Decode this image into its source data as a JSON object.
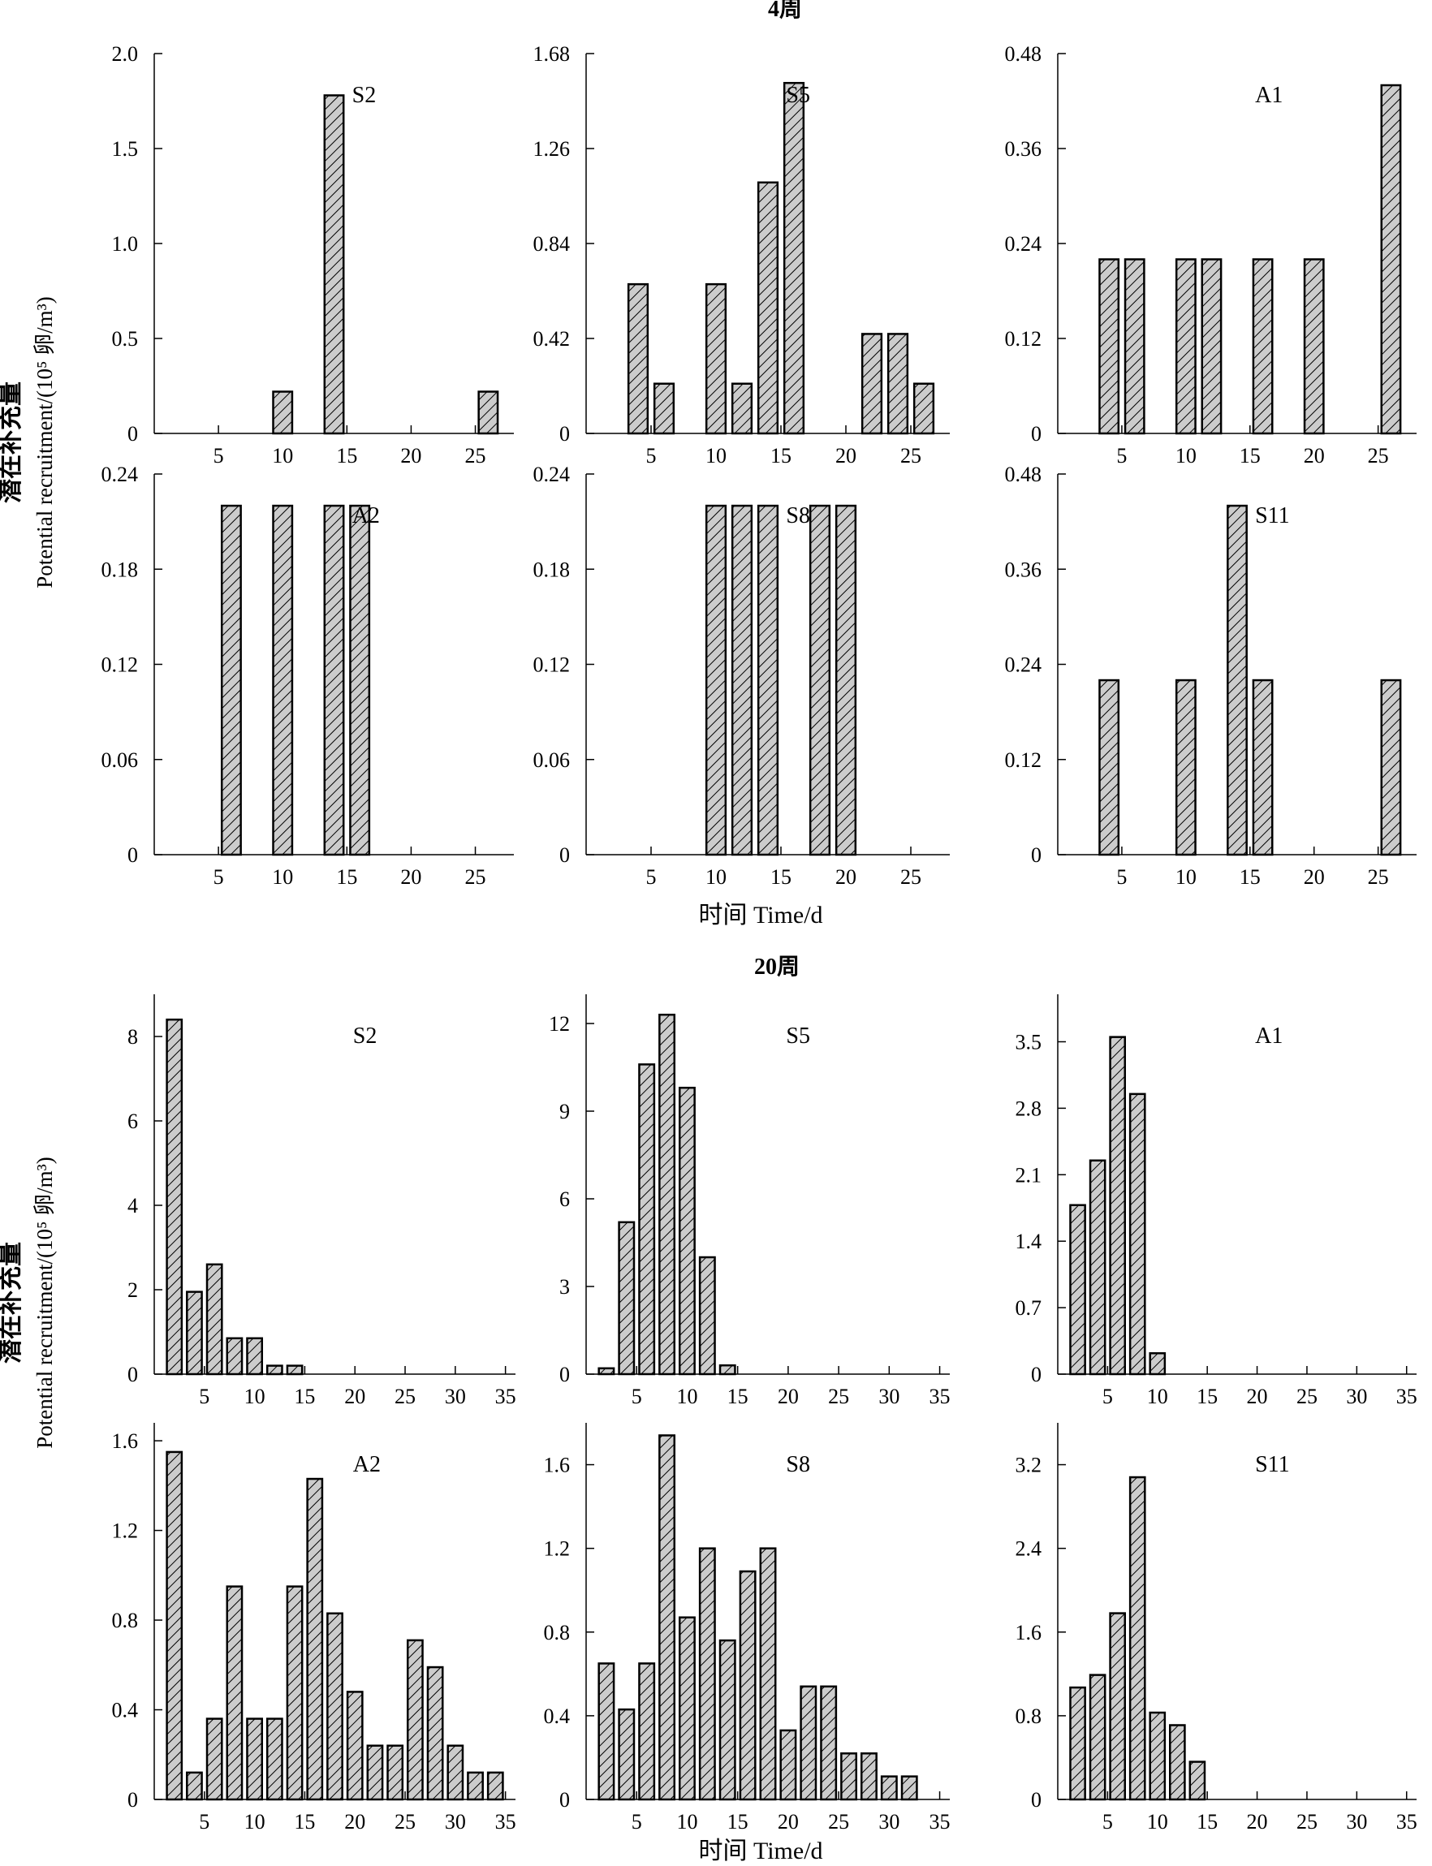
{
  "sections": [
    {
      "title": "4周",
      "xlabel": "时间 Time/d",
      "ylabel_zh": "潜在补充量",
      "ylabel_en": "Potential recruitment/(10⁵ 卵/m³)",
      "panels": [
        {
          "label": "S2",
          "ylim": [
            0,
            2.0
          ],
          "yticks": [
            "0",
            "0.5",
            "1.0",
            "1.5",
            "2.0"
          ],
          "xticks": [
            "5",
            "10",
            "15",
            "20",
            "25"
          ],
          "x": [
            10,
            14,
            26
          ],
          "values": [
            0.22,
            1.78,
            0.22
          ]
        },
        {
          "label": "S5",
          "ylim": [
            0,
            1.68
          ],
          "yticks": [
            "0",
            "0.42",
            "0.84",
            "1.26",
            "1.68"
          ],
          "xticks": [
            "5",
            "10",
            "15",
            "20",
            "25"
          ],
          "x": [
            4,
            6,
            10,
            12,
            14,
            16,
            22,
            24,
            26
          ],
          "values": [
            0.66,
            0.22,
            0.66,
            0.22,
            1.11,
            1.55,
            0.44,
            0.44,
            0.22
          ]
        },
        {
          "label": "A1",
          "ylim": [
            0,
            0.48
          ],
          "yticks": [
            "0",
            "0.12",
            "0.24",
            "0.36",
            "0.48"
          ],
          "xticks": [
            "5",
            "10",
            "15",
            "20",
            "25"
          ],
          "x": [
            4,
            6,
            10,
            12,
            16,
            20,
            26
          ],
          "values": [
            0.22,
            0.22,
            0.22,
            0.22,
            0.22,
            0.22,
            0.44
          ]
        },
        {
          "label": "A2",
          "ylim": [
            0,
            0.24
          ],
          "yticks": [
            "0",
            "0.06",
            "0.12",
            "0.18",
            "0.24"
          ],
          "xticks": [
            "5",
            "10",
            "15",
            "20",
            "25"
          ],
          "x": [
            6,
            10,
            14,
            16
          ],
          "values": [
            0.22,
            0.22,
            0.22,
            0.22
          ]
        },
        {
          "label": "S8",
          "ylim": [
            0,
            0.24
          ],
          "yticks": [
            "0",
            "0.06",
            "0.12",
            "0.18",
            "0.24"
          ],
          "xticks": [
            "5",
            "10",
            "15",
            "20",
            "25"
          ],
          "x": [
            10,
            12,
            14,
            18,
            20
          ],
          "values": [
            0.22,
            0.22,
            0.22,
            0.22,
            0.22
          ]
        },
        {
          "label": "S11",
          "ylim": [
            0,
            0.48
          ],
          "yticks": [
            "0",
            "0.12",
            "0.24",
            "0.36",
            "0.48"
          ],
          "xticks": [
            "5",
            "10",
            "15",
            "20",
            "25"
          ],
          "x": [
            4,
            10,
            14,
            16,
            26
          ],
          "values": [
            0.22,
            0.22,
            0.44,
            0.22,
            0.22
          ]
        }
      ]
    },
    {
      "title": "20周",
      "xlabel": "时间 Time/d",
      "ylabel_zh": "潜在补充量",
      "ylabel_en": "Potential recruitment/(10⁵ 卵/m³)",
      "panels": [
        {
          "label": "S2",
          "ylim": [
            0,
            9
          ],
          "yticks": [
            "0",
            "2",
            "4",
            "6",
            "8"
          ],
          "xticks": [
            "5",
            "10",
            "15",
            "20",
            "25",
            "30",
            "35"
          ],
          "x": [
            2,
            4,
            6,
            8,
            10,
            12,
            14
          ],
          "values": [
            8.4,
            1.95,
            2.6,
            0.85,
            0.85,
            0.2,
            0.2
          ]
        },
        {
          "label": "S5",
          "ylim": [
            0,
            13
          ],
          "yticks": [
            "0",
            "3",
            "6",
            "9",
            "12"
          ],
          "xticks": [
            "5",
            "10",
            "15",
            "20",
            "25",
            "30",
            "35"
          ],
          "x": [
            2,
            4,
            6,
            8,
            10,
            12,
            14
          ],
          "values": [
            0.2,
            5.2,
            10.6,
            12.3,
            9.8,
            4.0,
            0.3
          ]
        },
        {
          "label": "A1",
          "ylim": [
            0,
            4.0
          ],
          "yticks": [
            "0",
            "0.7",
            "1.4",
            "2.1",
            "2.8",
            "3.5"
          ],
          "xticks": [
            "5",
            "10",
            "15",
            "20",
            "25",
            "30",
            "35"
          ],
          "x": [
            2,
            4,
            6,
            8,
            10
          ],
          "values": [
            1.78,
            2.25,
            3.55,
            2.95,
            0.22
          ]
        },
        {
          "label": "A2",
          "ylim": [
            0,
            1.68
          ],
          "yticks": [
            "0",
            "0.4",
            "0.8",
            "1.2",
            "1.6"
          ],
          "xticks": [
            "5",
            "10",
            "15",
            "20",
            "25",
            "30",
            "35"
          ],
          "x": [
            2,
            4,
            6,
            8,
            10,
            12,
            14,
            16,
            18,
            20,
            22,
            24,
            26,
            28,
            30,
            32,
            34
          ],
          "values": [
            1.55,
            0.12,
            0.36,
            0.95,
            0.36,
            0.36,
            0.95,
            1.43,
            0.83,
            0.48,
            0.24,
            0.24,
            0.71,
            0.59,
            0.24,
            0.12,
            0.12
          ]
        },
        {
          "label": "S8",
          "ylim": [
            0,
            1.8
          ],
          "yticks": [
            "0",
            "0.4",
            "0.8",
            "1.2",
            "1.6"
          ],
          "xticks": [
            "5",
            "10",
            "15",
            "20",
            "25",
            "30",
            "35"
          ],
          "x": [
            2,
            4,
            6,
            8,
            10,
            12,
            14,
            16,
            18,
            20,
            22,
            24,
            26,
            28,
            30,
            32
          ],
          "values": [
            0.65,
            0.43,
            0.65,
            1.74,
            0.87,
            1.2,
            0.76,
            1.09,
            1.2,
            0.33,
            0.54,
            0.54,
            0.22,
            0.22,
            0.11,
            0.11
          ]
        },
        {
          "label": "S11",
          "ylim": [
            0,
            3.6
          ],
          "yticks": [
            "0",
            "0.8",
            "1.6",
            "2.4",
            "3.2"
          ],
          "xticks": [
            "5",
            "10",
            "15",
            "20",
            "25",
            "30",
            "35"
          ],
          "x": [
            2,
            4,
            6,
            8,
            10,
            12,
            14
          ],
          "values": [
            1.07,
            1.19,
            1.78,
            3.08,
            0.83,
            0.71,
            0.36
          ]
        }
      ]
    }
  ],
  "colors": {
    "bar_fill": "#cccccc",
    "hatch_line": "#000000",
    "axis": "#000000"
  }
}
